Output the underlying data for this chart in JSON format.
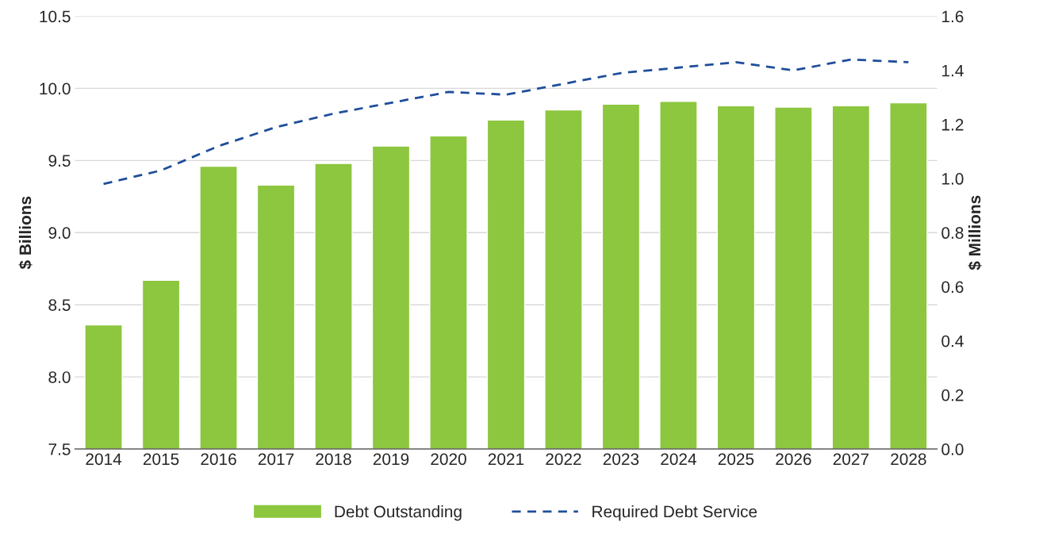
{
  "chart_data": {
    "type": "bar",
    "categories": [
      "2014",
      "2015",
      "2016",
      "2017",
      "2018",
      "2019",
      "2020",
      "2021",
      "2022",
      "2023",
      "2024",
      "2025",
      "2026",
      "2027",
      "2028"
    ],
    "series": [
      {
        "name": "Debt Outstanding",
        "color": "#8dc63f",
        "values": [
          8.36,
          8.67,
          9.46,
          9.33,
          9.48,
          9.6,
          9.67,
          9.78,
          9.85,
          9.89,
          9.91,
          9.88,
          9.87,
          9.88,
          9.9
        ]
      },
      {
        "name": "Required Debt Service",
        "type": "line",
        "axis": "y2",
        "color": "#1f4e9a",
        "line_style": "dashed",
        "values": [
          0.98,
          1.03,
          1.12,
          1.19,
          1.24,
          1.28,
          1.32,
          1.31,
          1.35,
          1.39,
          1.41,
          1.43,
          1.4,
          1.44,
          1.43
        ]
      }
    ],
    "ylabel": "$ Billions",
    "y2label": "$ Millions",
    "ylim": [
      7.5,
      10.5
    ],
    "yticks": [
      {
        "value": 7.5,
        "label": "7.5"
      },
      {
        "value": 8.0,
        "label": "8.0"
      },
      {
        "value": 8.5,
        "label": "8.5"
      },
      {
        "value": 9.0,
        "label": "9.0"
      },
      {
        "value": 9.5,
        "label": "9.5"
      },
      {
        "value": 10.0,
        "label": "10.0"
      },
      {
        "value": 10.5,
        "label": "10.5"
      }
    ],
    "y2lim": [
      0,
      1.6
    ],
    "y2ticks": [
      {
        "value": 0,
        "label": "0.0"
      },
      {
        "value": 0.2,
        "label": "0.2"
      },
      {
        "value": 0.4,
        "label": "0.4"
      },
      {
        "value": 0.6,
        "label": "0.6"
      },
      {
        "value": 0.8,
        "label": "0.8"
      },
      {
        "value": 1.0,
        "label": "1.0"
      },
      {
        "value": 1.2,
        "label": "1.2"
      },
      {
        "value": 1.4,
        "label": "1.4"
      },
      {
        "value": 1.6,
        "label": "1.6"
      }
    ],
    "grid": "y",
    "legend": "bottom"
  }
}
